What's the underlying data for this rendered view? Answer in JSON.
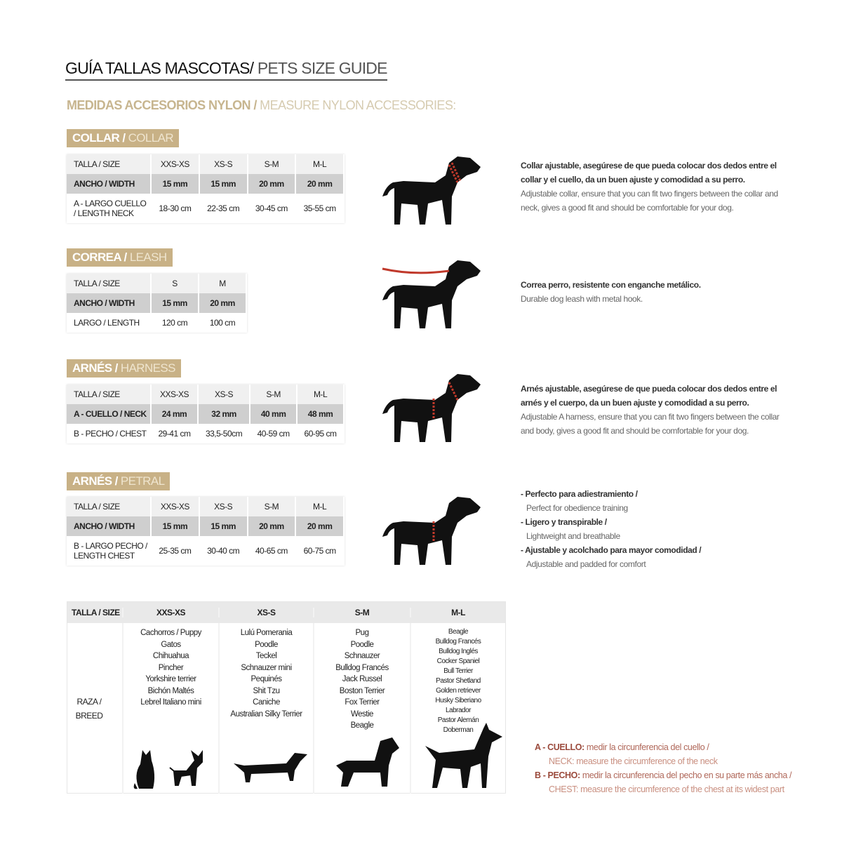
{
  "title": {
    "es": "GUÍA TALLAS MASCOTAS/",
    "en": " PETS SIZE GUIDE"
  },
  "subtitle": {
    "es": "MEDIDAS ACCESORIOS NYLON / ",
    "en": "MEASURE NYLON ACCESSORIES:"
  },
  "colors": {
    "section_bg": "#c8b186",
    "accent_red": "#c0392b",
    "legend_text": "#9b4a3c"
  },
  "sections": [
    {
      "title_es": "COLLAR / ",
      "title_en": "COLLAR",
      "rows": [
        [
          "TALLA / SIZE",
          "XXS-XS",
          "XS-S",
          "S-M",
          "M-L"
        ],
        [
          "ANCHO / WIDTH",
          "15 mm",
          "15 mm",
          "20 mm",
          "20 mm"
        ],
        [
          "A - LARGO CUELLO / LENGTH NECK",
          "18-30 cm",
          "22-35 cm",
          "30-45 cm",
          "35-55 cm"
        ]
      ],
      "desc": {
        "es": "Collar ajustable, asegúrese de que pueda colocar dos dedos entre el collar y el cuello, da un buen ajuste y comodidad a su perro.",
        "en": "Adjustable collar, ensure that you can fit two fingers between the collar and neck, gives a good fit and should be comfortable for your dog."
      }
    },
    {
      "title_es": "CORREA / ",
      "title_en": "LEASH",
      "rows": [
        [
          "TALLA / SIZE",
          "S",
          "M"
        ],
        [
          "ANCHO / WIDTH",
          "15 mm",
          "20 mm"
        ],
        [
          "LARGO / LENGTH",
          "120 cm",
          "100 cm"
        ]
      ],
      "desc": {
        "es": "Correa perro, resistente con enganche metálico.",
        "en": "Durable dog leash with metal hook."
      }
    },
    {
      "title_es": "ARNÉS / ",
      "title_en": "HARNESS",
      "rows": [
        [
          "TALLA / SIZE",
          "XXS-XS",
          "XS-S",
          "S-M",
          "M-L"
        ],
        [
          "A - CUELLO / NECK",
          "24 mm",
          "32 mm",
          "40 mm",
          "48 mm"
        ],
        [
          "B - PECHO / CHEST",
          "29-41 cm",
          "33,5-50cm",
          "40-59 cm",
          "60-95 cm"
        ]
      ],
      "desc": {
        "es": "Arnés ajustable, asegúrese de que pueda colocar dos dedos entre el arnés y el cuerpo, da un buen ajuste y comodidad a su perro.",
        "en": "Adjustable A harness, ensure that you can fit two fingers between the collar and body, gives a good fit and should be comfortable for your dog."
      }
    },
    {
      "title_es": "ARNÉS / ",
      "title_en": "PETRAL",
      "rows": [
        [
          "TALLA / SIZE",
          "XXS-XS",
          "XS-S",
          "S-M",
          "M-L"
        ],
        [
          "ANCHO / WIDTH",
          "15 mm",
          "15 mm",
          "20 mm",
          "20 mm"
        ],
        [
          "B - LARGO PECHO / LENGTH CHEST",
          "25-35 cm",
          "30-40 cm",
          "40-65 cm",
          "60-75 cm"
        ]
      ],
      "bullets": [
        {
          "es": "- Perfecto para adiestramiento /",
          "en": "Perfect for obedience training"
        },
        {
          "es": "- Ligero y transpirable /",
          "en": "Lightweight and breathable"
        },
        {
          "es": "- Ajustable y acolchado para mayor comodidad /",
          "en": "Adjustable and padded for comfort"
        }
      ]
    }
  ],
  "breed_table": {
    "size_label": "TALLA /  SIZE",
    "breed_label": "RAZA / BREED",
    "sizes": [
      "XXS-XS",
      "XS-S",
      "S-M",
      "M-L"
    ],
    "breeds": [
      [
        "Cachorros / Puppy",
        "Gatos",
        "Chihuahua",
        "Pincher",
        "Yorkshire terrier",
        "Bichón Maltés",
        "Lebrel Italiano mini"
      ],
      [
        "Lulú Pomerania",
        "Poodle",
        "Teckel",
        "Schnauzer mini",
        "Pequinés",
        "Shit Tzu",
        "Caniche",
        "Australian Silky Terrier"
      ],
      [
        "Pug",
        "Poodle",
        "Schnauzer",
        "Bulldog Francés",
        "Jack Russel",
        "Boston Terrier",
        "Fox Terrier",
        "Westie",
        "Beagle"
      ],
      [
        "Beagle",
        "Bulldog Francés",
        "Bulldog Inglés",
        "Cocker Spaniel",
        "Bull Terrier",
        "Pastor Shetland",
        "Golden retriever",
        "Husky Siberiano",
        "Labrador",
        "Pastor Alemán",
        "Doberman"
      ]
    ]
  },
  "legend": [
    {
      "key": "A - CUELLO:",
      "es": " medir la circunferencia del cuello /",
      "en": "NECK: measure the circumference of the neck"
    },
    {
      "key": "B - PECHO:",
      "es": " medir la circunferencia del pecho en su parte más ancha /",
      "en": "CHEST: measure the circumference of the chest at its widest part"
    }
  ]
}
